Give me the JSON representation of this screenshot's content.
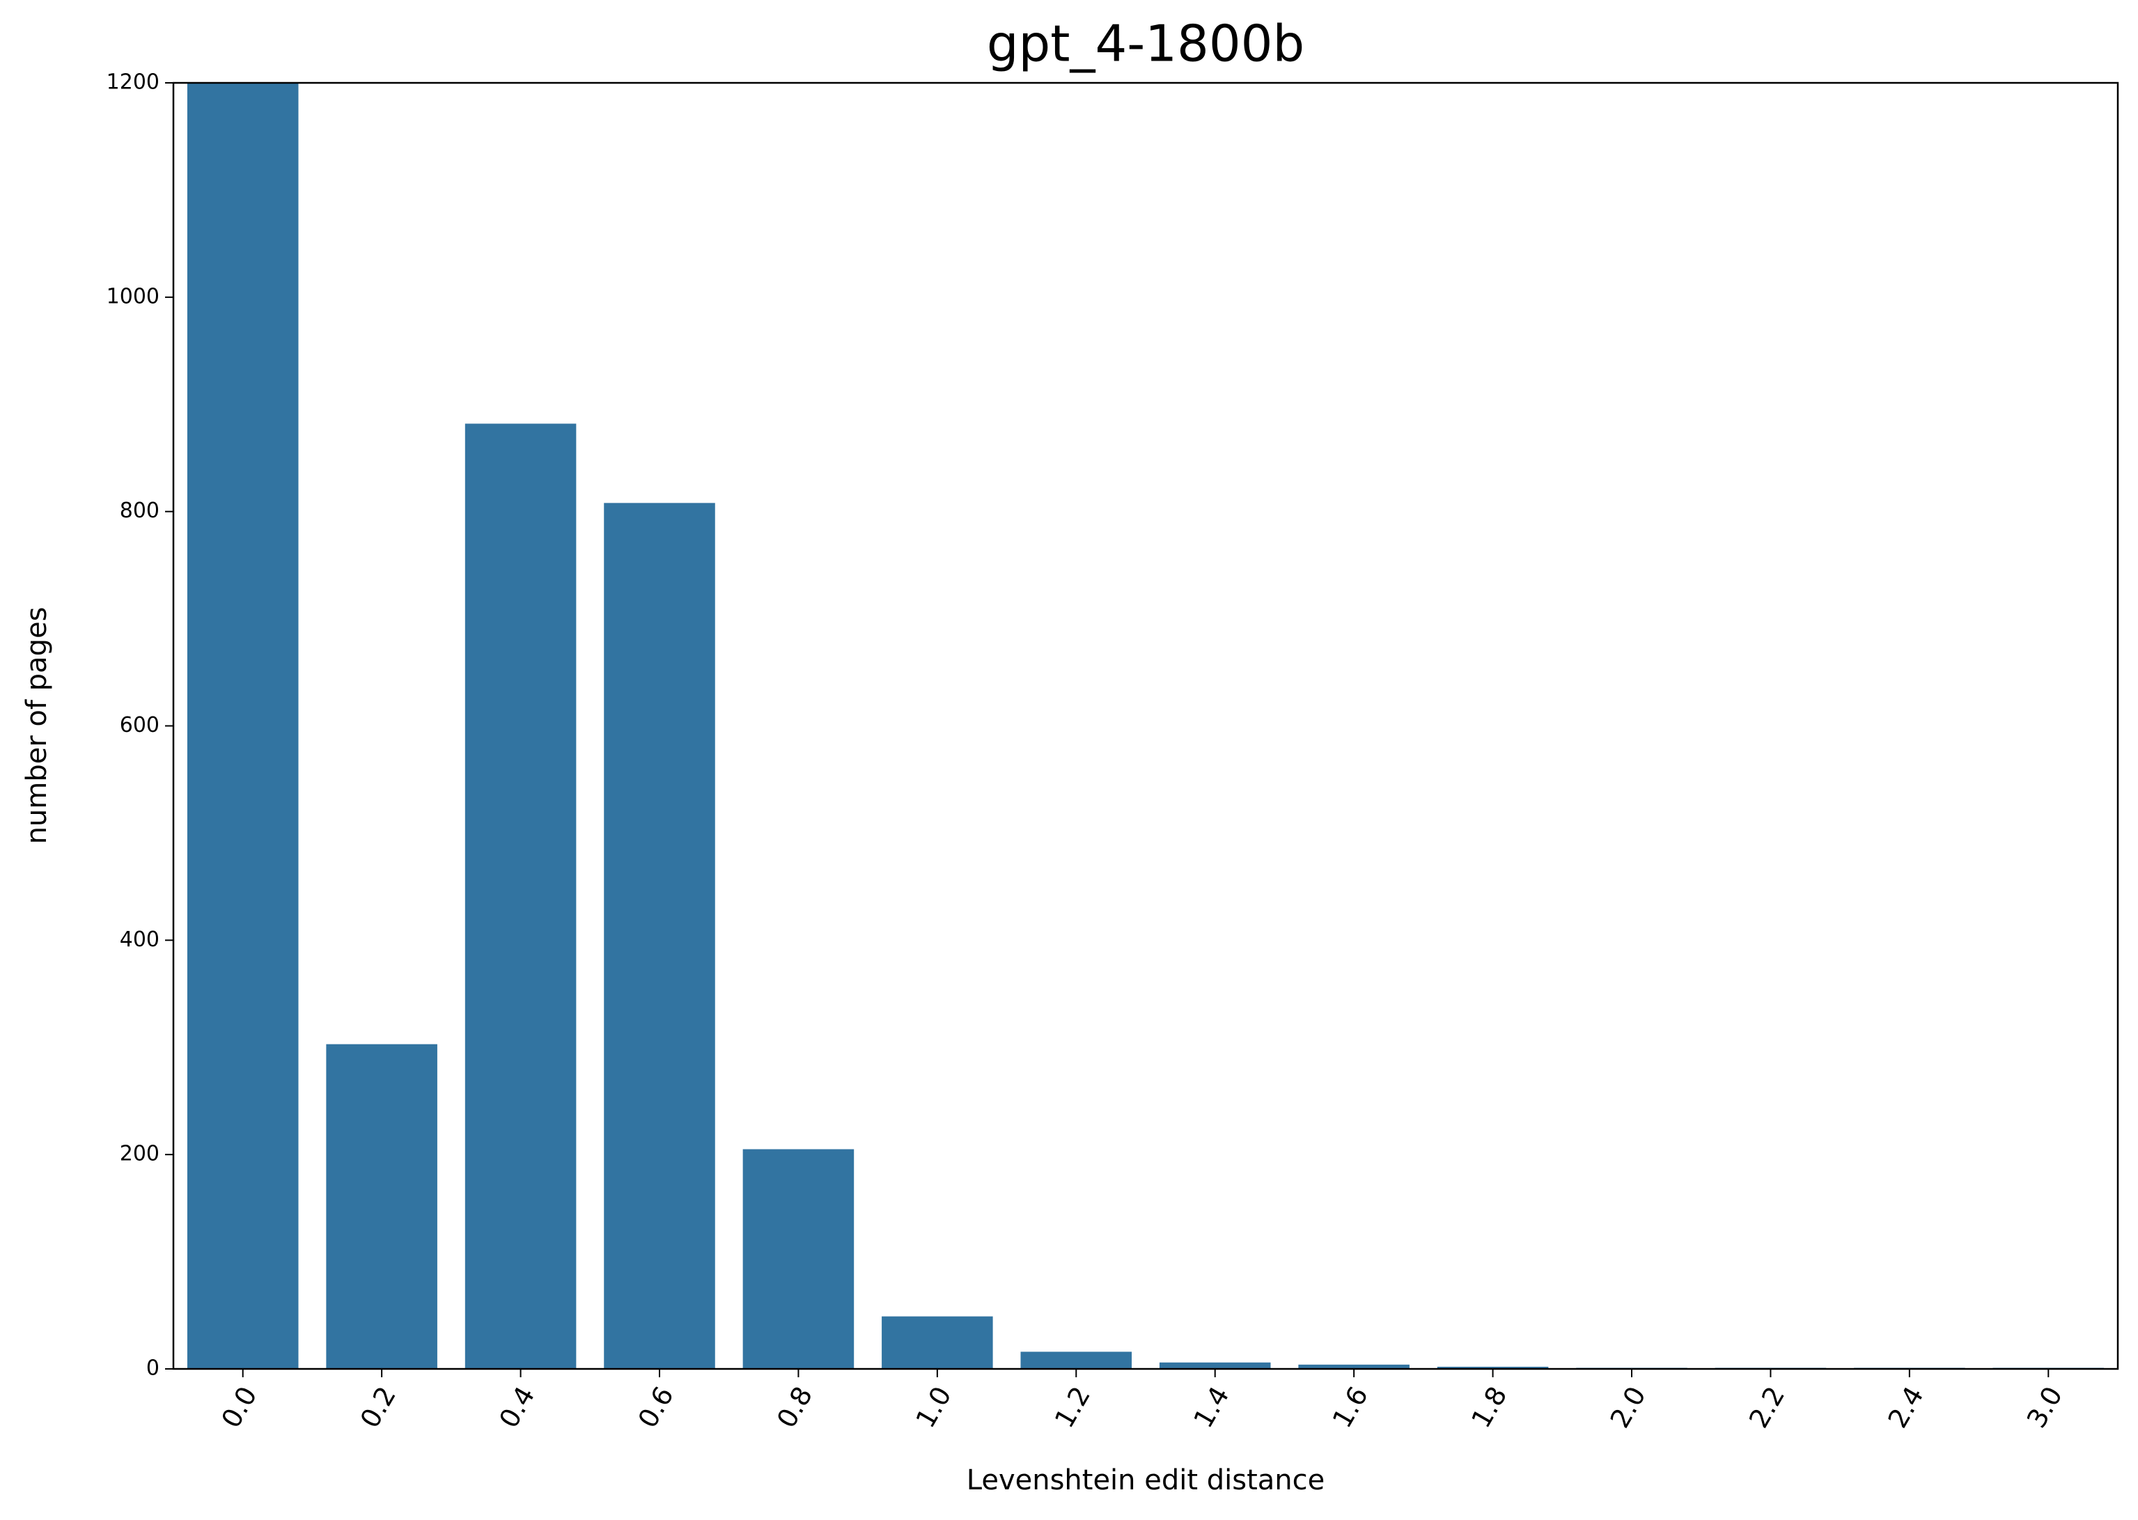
{
  "chart_data": {
    "type": "bar",
    "title": "gpt_4-1800b",
    "x_label": "Levenshtein edit distance",
    "y_label": "number of pages",
    "categories": [
      "0.0",
      "0.2",
      "0.4",
      "0.6",
      "0.8",
      "1.0",
      "1.2",
      "1.4",
      "1.6",
      "1.8",
      "2.0",
      "2.2",
      "2.4",
      "3.0"
    ],
    "values": [
      1200,
      303,
      882,
      808,
      205,
      49,
      16,
      6,
      4,
      2,
      1,
      1,
      1,
      1
    ],
    "color": "#3274a1",
    "ylim": [
      0,
      1200
    ],
    "yticks": [
      0,
      200,
      400,
      600,
      800,
      1000,
      1200
    ]
  }
}
